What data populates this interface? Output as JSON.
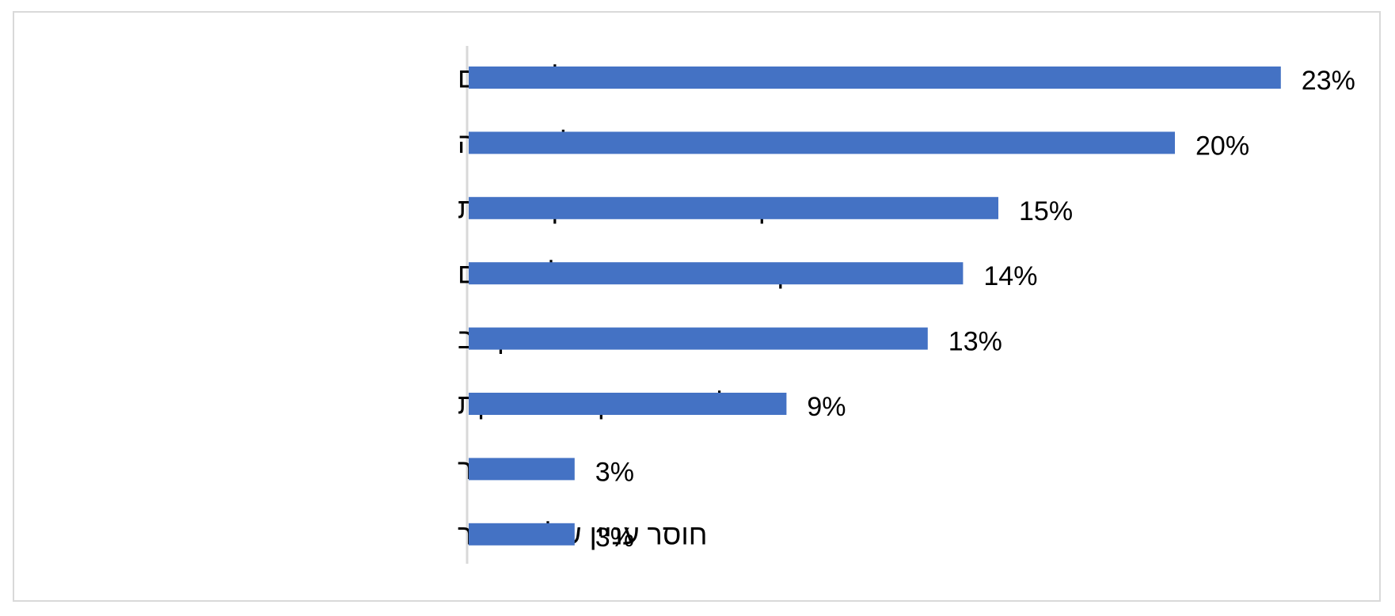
{
  "chart_data": {
    "type": "bar",
    "orientation": "horizontal",
    "categories": [
      "סדרי עדיפויות לא טובים",
      "חוסר אכפתיות של ההנהגה",
      "קושי אמיתי בפתרון הבעיות",
      "תפקוד השר האחראי על התחום",
      "חוסר תקציב",
      "רגולציה ובירוקרטיה חונקת",
      "אחר",
      "חוסר עניין של הציבור"
    ],
    "values": [
      23,
      20,
      15,
      14,
      13,
      9,
      3,
      3
    ],
    "value_labels": [
      "23%",
      "20%",
      "15%",
      "14%",
      "13%",
      "9%",
      "3%",
      "3%"
    ],
    "xlim": [
      0,
      25
    ],
    "grid": false,
    "legend": "none",
    "colors": {
      "bar": "#4472C4",
      "axis": "#d9d9d9",
      "text": "#000000"
    }
  }
}
